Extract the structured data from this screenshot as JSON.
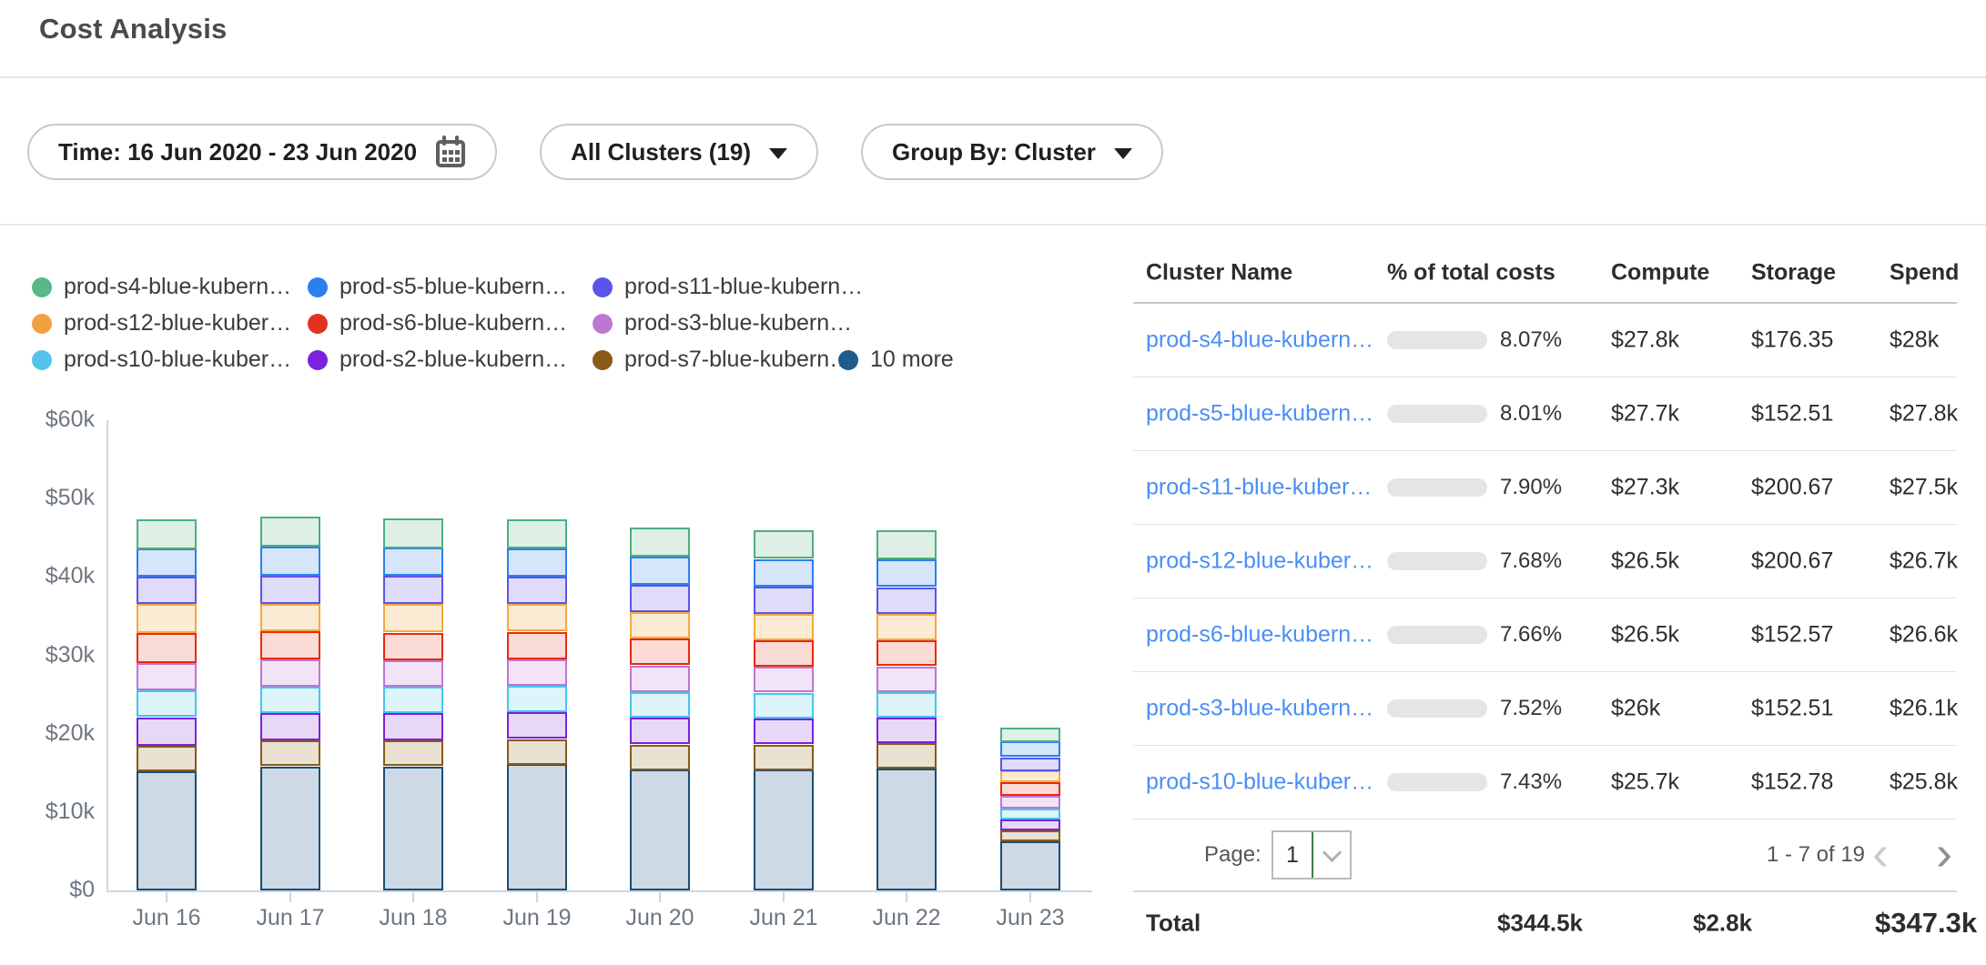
{
  "page": {
    "title": "Cost Analysis"
  },
  "filters": {
    "time": {
      "label": "Time: 16 Jun 2020 - 23 Jun 2020",
      "icon": "calendar-icon"
    },
    "clusters": {
      "label": "All Clusters (19)",
      "icon": "caret-down-icon"
    },
    "group_by": {
      "label": "Group By: Cluster",
      "icon": "caret-down-icon"
    }
  },
  "chart_data": {
    "type": "bar",
    "stacked": true,
    "title": "",
    "xlabel": "",
    "ylabel": "",
    "unit": "USD (k)",
    "ylim": [
      0,
      60000
    ],
    "grid": false,
    "legend_position": "top",
    "yticks": [
      "$0",
      "$10k",
      "$20k",
      "$30k",
      "$40k",
      "$50k",
      "$60k"
    ],
    "categories": [
      "Jun 16",
      "Jun 17",
      "Jun 18",
      "Jun 19",
      "Jun 20",
      "Jun 21",
      "Jun 22",
      "Jun 23"
    ],
    "series": [
      {
        "name": "prod-s4-blue-kubern…",
        "dot": "#57b987",
        "border": "#4cb07e",
        "fill": "#def0e5",
        "values": [
          3.8,
          3.8,
          3.8,
          3.7,
          3.7,
          3.6,
          3.7,
          1.8
        ]
      },
      {
        "name": "prod-s5-blue-kubern…",
        "dot": "#2d7ff0",
        "border": "#2d7ff0",
        "fill": "#d7e5fb",
        "values": [
          3.6,
          3.7,
          3.6,
          3.6,
          3.6,
          3.5,
          3.5,
          2.0
        ]
      },
      {
        "name": "prod-s11-blue-kubern…",
        "dot": "#5a55ea",
        "border": "#5a55ea",
        "fill": "#dedcf9",
        "values": [
          3.5,
          3.6,
          3.6,
          3.5,
          3.5,
          3.5,
          3.4,
          1.7
        ]
      },
      {
        "name": "prod-s12-blue-kuber…",
        "dot": "#f0a143",
        "border": "#f5a93c",
        "fill": "#fcebd4",
        "values": [
          3.7,
          3.5,
          3.6,
          3.5,
          3.4,
          3.4,
          3.4,
          1.5
        ]
      },
      {
        "name": "prod-s6-blue-kubern…",
        "dot": "#e2321f",
        "border": "#e8290f",
        "fill": "#fadbd6",
        "values": [
          3.8,
          3.6,
          3.5,
          3.5,
          3.4,
          3.4,
          3.3,
          1.7
        ]
      },
      {
        "name": "prod-s3-blue-kubern…",
        "dot": "#bd76d4",
        "border": "#bd76d4",
        "fill": "#f3e3f6",
        "values": [
          3.5,
          3.5,
          3.4,
          3.4,
          3.4,
          3.3,
          3.3,
          1.6
        ]
      },
      {
        "name": "prod-s10-blue-kuber…",
        "dot": "#54c4ec",
        "border": "#45c5ea",
        "fill": "#def4fb",
        "values": [
          3.4,
          3.4,
          3.4,
          3.4,
          3.3,
          3.3,
          3.2,
          1.4
        ]
      },
      {
        "name": "prod-s2-blue-kubern…",
        "dot": "#7a22dd",
        "border": "#7a22dd",
        "fill": "#e7d9f6",
        "values": [
          3.6,
          3.5,
          3.5,
          3.4,
          3.4,
          3.3,
          3.3,
          1.4
        ]
      },
      {
        "name": "prod-s7-blue-kubern…",
        "dot": "#8a5a19",
        "border": "#8a5a19",
        "fill": "#e9e1d2",
        "values": [
          3.3,
          3.3,
          3.3,
          3.2,
          3.2,
          3.2,
          3.2,
          1.4
        ]
      },
      {
        "name": "10 more",
        "dot": "#1f5c8b",
        "border": "#1b4f72",
        "fill": "#cdd9e5",
        "values": [
          15.2,
          15.8,
          15.8,
          16.1,
          15.4,
          15.4,
          15.6,
          6.3
        ]
      }
    ],
    "stack_bottom_to_top": [
      "10 more",
      "prod-s7-blue-kubern…",
      "prod-s2-blue-kubern…",
      "prod-s10-blue-kuber…",
      "prod-s3-blue-kubern…",
      "prod-s6-blue-kubern…",
      "prod-s12-blue-kuber…",
      "prod-s11-blue-kubern…",
      "prod-s5-blue-kubern…",
      "prod-s4-blue-kubern…"
    ]
  },
  "table": {
    "columns": [
      "Cluster Name",
      "% of total costs",
      "Compute",
      "Storage",
      "Spend"
    ],
    "rows": [
      {
        "name": "prod-s4-blue-kubern…",
        "pct": "8.07%",
        "pct_value": 8.07,
        "compute": "$27.8k",
        "storage": "$176.35",
        "spend": "$28k"
      },
      {
        "name": "prod-s5-blue-kubern…",
        "pct": "8.01%",
        "pct_value": 8.01,
        "compute": "$27.7k",
        "storage": "$152.51",
        "spend": "$27.8k"
      },
      {
        "name": "prod-s11-blue-kuber…",
        "pct": "7.90%",
        "pct_value": 7.9,
        "compute": "$27.3k",
        "storage": "$200.67",
        "spend": "$27.5k"
      },
      {
        "name": "prod-s12-blue-kuber…",
        "pct": "7.68%",
        "pct_value": 7.68,
        "compute": "$26.5k",
        "storage": "$200.67",
        "spend": "$26.7k"
      },
      {
        "name": "prod-s6-blue-kubern…",
        "pct": "7.66%",
        "pct_value": 7.66,
        "compute": "$26.5k",
        "storage": "$152.57",
        "spend": "$26.6k"
      },
      {
        "name": "prod-s3-blue-kubern…",
        "pct": "7.52%",
        "pct_value": 7.52,
        "compute": "$26k",
        "storage": "$152.51",
        "spend": "$26.1k"
      },
      {
        "name": "prod-s10-blue-kuber…",
        "pct": "7.43%",
        "pct_value": 7.43,
        "compute": "$25.7k",
        "storage": "$152.78",
        "spend": "$25.8k"
      }
    ],
    "progress": {
      "track_color": "#e5e5e8",
      "fill_color": "#4a7df0"
    },
    "pagination": {
      "page_label": "Page:",
      "page_value": "1",
      "range": "1 - 7 of 19",
      "prev": "‹",
      "next": "›"
    },
    "total": {
      "label": "Total",
      "compute": "$344.5k",
      "storage": "$2.8k",
      "spend": "$347.3k"
    }
  }
}
